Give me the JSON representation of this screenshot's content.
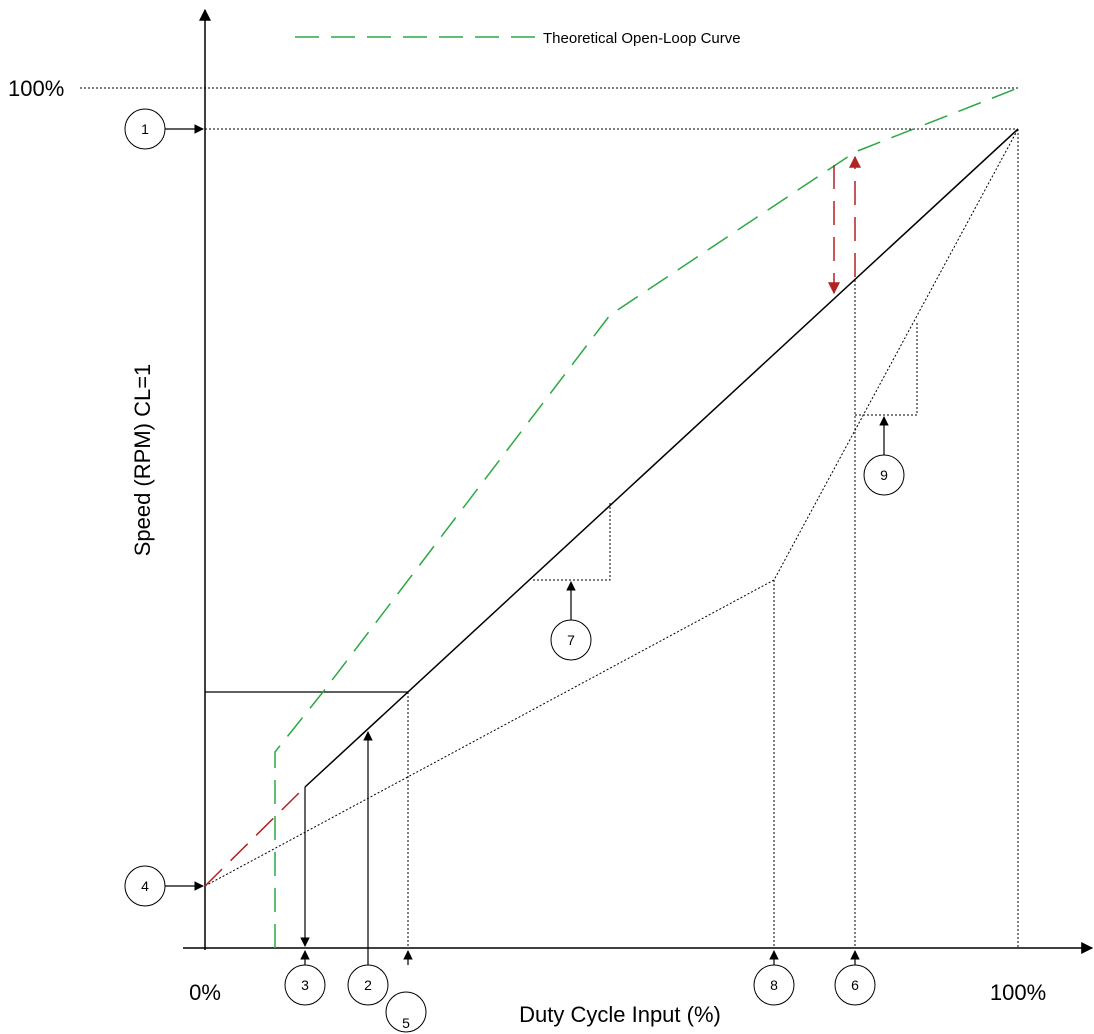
{
  "legend": {
    "label": "Theoretical Open-Loop Curve",
    "color": "#2ca844"
  },
  "axes": {
    "y_label": "Speed (RPM) CL=1",
    "x_label": "Duty Cycle Input (%)",
    "y_top_label": "100%",
    "x_origin_label": "0%",
    "x_end_label": "100%"
  },
  "colors": {
    "line": "#000000",
    "open_loop": "#2ca844",
    "difference": "#b22222"
  },
  "callouts": [
    "1",
    "2",
    "3",
    "4",
    "5",
    "6",
    "7",
    "8",
    "9"
  ]
}
